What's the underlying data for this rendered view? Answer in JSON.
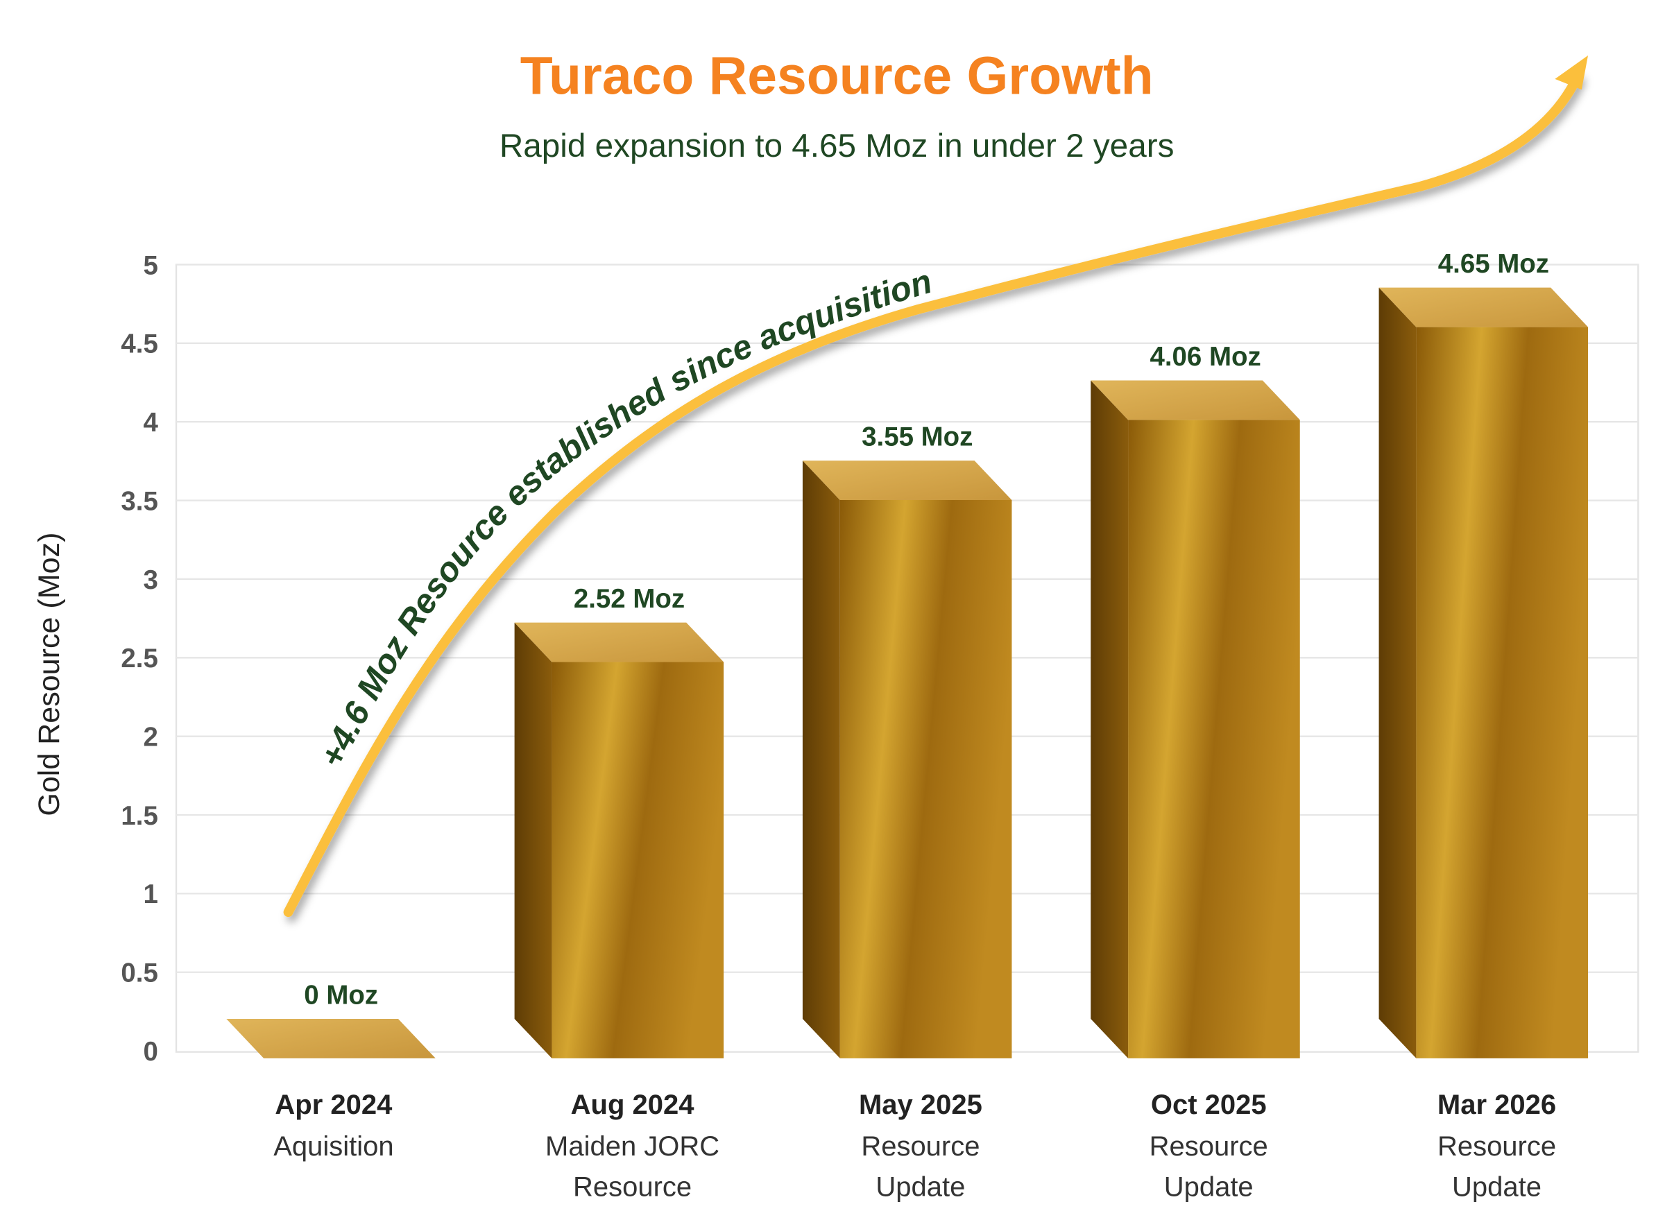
{
  "chart_data": {
    "type": "bar",
    "title": "Turaco Resource Growth",
    "subtitle": "Rapid expansion to 4.65 Moz in under 2 years",
    "ylabel": "Gold Resource (Moz)",
    "xlabel": "",
    "ylim": [
      0,
      5
    ],
    "yticks": [
      "0",
      "0.5",
      "1",
      "1.5",
      "2",
      "2.5",
      "3",
      "3.5",
      "4",
      "4.5",
      "5"
    ],
    "grid": true,
    "categories": [
      {
        "date": "Apr 2024",
        "desc": [
          "Aquisition"
        ]
      },
      {
        "date": "Aug 2024",
        "desc": [
          "Maiden JORC",
          "Resource"
        ]
      },
      {
        "date": "May 2025",
        "desc": [
          "Resource",
          "Update"
        ]
      },
      {
        "date": "Oct 2025",
        "desc": [
          "Resource",
          "Update"
        ]
      },
      {
        "date": "Mar 2026",
        "desc": [
          "Resource",
          "Update"
        ]
      }
    ],
    "values": [
      0,
      2.52,
      3.55,
      4.06,
      4.65
    ],
    "data_labels": [
      "0 Moz",
      "2.52 Moz",
      "3.55 Moz",
      "4.06 Moz",
      "4.65 Moz"
    ],
    "annotation": "+4.6 Moz Resource established since acquisition",
    "colors": {
      "title": "#f58220",
      "text_green": "#1f4723",
      "arrow": "#fbbf3c",
      "gold": "#b8860b"
    }
  }
}
